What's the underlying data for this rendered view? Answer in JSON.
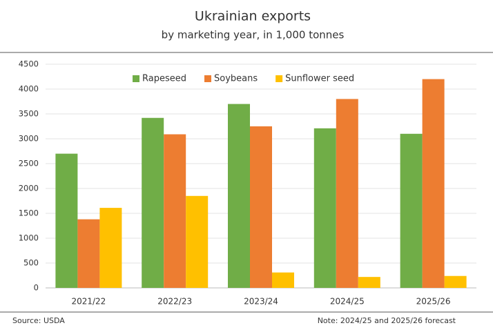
{
  "chart_data": {
    "type": "bar",
    "title": "Ukrainian exports",
    "subtitle": "by marketing year, in 1,000 tonnes",
    "categories": [
      "2021/22",
      "2022/23",
      "2023/24",
      "2024/25",
      "2025/26"
    ],
    "series": [
      {
        "name": "Rapeseed",
        "color": "#70ad47",
        "values": [
          2700,
          3420,
          3700,
          3210,
          3100
        ]
      },
      {
        "name": "Soybeans",
        "color": "#ed7d31",
        "values": [
          1380,
          3090,
          3250,
          3800,
          4200
        ]
      },
      {
        "name": "Sunflower seed",
        "color": "#ffc000",
        "values": [
          1610,
          1850,
          310,
          220,
          240
        ]
      }
    ],
    "ylim": [
      0,
      4500
    ],
    "yticks": [
      0,
      500,
      1000,
      1500,
      2000,
      2500,
      3000,
      3500,
      4000,
      4500
    ],
    "grid": true,
    "legend": "top",
    "source": "Source: USDA",
    "note": "Note: 2024/25 and 2025/26 forecast"
  }
}
